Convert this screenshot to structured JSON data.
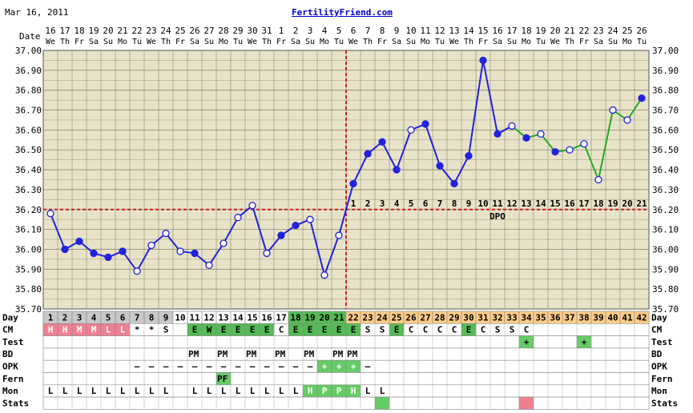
{
  "header": {
    "date": "Mar 16, 2011",
    "site": "FertilityFriend.com"
  },
  "colors": {
    "grid_bg": "#e8e3c8",
    "grid_line": "#8a8a70",
    "temp_line": "#2222dd",
    "post_line": "#22aa22",
    "cover_line": "#cc2222",
    "ovulation_line": "#cc2222",
    "cd_gray": "#c8c8c8",
    "cd_green": "#55bb55",
    "cd_orange": "#ffcc88",
    "fertile_pink": "#f08090",
    "green_box": "#66cc66"
  },
  "row_labels": {
    "date": "Date",
    "day": "Day",
    "cm": "CM",
    "test": "Test",
    "bd": "BD",
    "opk": "OPK",
    "fern": "Fern",
    "mon": "Mon",
    "stats": "Stats",
    "dpo": "DPO"
  },
  "chart_data": {
    "type": "line",
    "title": "",
    "xlabel": "Day",
    "ylabel": "",
    "ylim": [
      35.7,
      37.0
    ],
    "y_ticks": [
      "37.00",
      "36.90",
      "36.80",
      "36.70",
      "36.60",
      "36.50",
      "36.40",
      "36.30",
      "36.20",
      "36.10",
      "36.00",
      "35.90",
      "35.80",
      "35.70"
    ],
    "grid": true,
    "dates": [
      "16",
      "17",
      "18",
      "19",
      "20",
      "21",
      "22",
      "23",
      "24",
      "25",
      "26",
      "27",
      "28",
      "29",
      "30",
      "31",
      "1",
      "2",
      "3",
      "4",
      "5",
      "6",
      "7",
      "8",
      "9",
      "10",
      "11",
      "12",
      "13",
      "14",
      "15",
      "16",
      "17",
      "18",
      "19",
      "20",
      "21",
      "22",
      "23",
      "24",
      "25",
      "26"
    ],
    "weekdays": [
      "We",
      "Th",
      "Fr",
      "Sa",
      "Su",
      "Mo",
      "Tu",
      "We",
      "Th",
      "Fr",
      "Sa",
      "Su",
      "Mo",
      "Tu",
      "We",
      "Th",
      "Fr",
      "Sa",
      "Su",
      "Mo",
      "Tu",
      "We",
      "Th",
      "Fr",
      "Sa",
      "Su",
      "Mo",
      "Tu",
      "We",
      "Th",
      "Fr",
      "Sa",
      "Su",
      "Mo",
      "Tu",
      "We",
      "Th",
      "Fr",
      "Sa",
      "Su",
      "Mo",
      "Tu"
    ],
    "cycle_days": [
      1,
      2,
      3,
      4,
      5,
      6,
      7,
      8,
      9,
      10,
      11,
      12,
      13,
      14,
      15,
      16,
      17,
      18,
      19,
      20,
      21,
      22,
      23,
      24,
      25,
      26,
      27,
      28,
      29,
      30,
      31,
      32,
      33,
      34,
      35,
      36,
      37,
      38,
      39,
      40,
      41,
      42
    ],
    "temperatures": [
      36.18,
      36.0,
      36.04,
      35.98,
      35.96,
      35.99,
      35.89,
      36.02,
      36.08,
      35.99,
      35.98,
      35.92,
      36.03,
      36.16,
      36.22,
      35.98,
      36.07,
      36.12,
      36.15,
      35.87,
      36.07,
      36.33,
      36.48,
      36.54,
      36.4,
      36.6,
      36.63,
      36.42,
      36.33,
      36.47,
      36.95,
      36.58,
      36.62,
      36.56,
      36.58,
      36.49,
      36.5,
      36.53,
      36.35,
      36.7,
      36.65,
      36.76
    ],
    "open_points": [
      1,
      7,
      8,
      9,
      10,
      12,
      13,
      14,
      15,
      16,
      19,
      20,
      21,
      26,
      33,
      35,
      37,
      38,
      39,
      40,
      41
    ],
    "missing_days": [],
    "coverline": 36.2,
    "ovulation_day": 21,
    "dpo_labels": [
      "1",
      "2",
      "3",
      "4",
      "5",
      "6",
      "7",
      "8",
      "9",
      "10",
      "11",
      "12",
      "13",
      "14",
      "15",
      "16",
      "17",
      "18",
      "19",
      "20",
      "21"
    ],
    "cm": [
      "H",
      "H",
      "M",
      "M",
      "L",
      "L",
      "*",
      "*",
      "S",
      "",
      "E",
      "W",
      "E",
      "E",
      "E",
      "E",
      "C",
      "E",
      "E",
      "E",
      "E",
      "E",
      "S",
      "S",
      "E",
      "C",
      "C",
      "C",
      "C",
      "E",
      "C",
      "S",
      "S",
      "C",
      "",
      "",
      "",
      "",
      "",
      "",
      "",
      ""
    ],
    "test": [
      "",
      "",
      "",
      "",
      "",
      "",
      "",
      "",
      "",
      "",
      "",
      "",
      "",
      "",
      "",
      "",
      "",
      "",
      "",
      "",
      "",
      "",
      "",
      "",
      "",
      "",
      "",
      "",
      "",
      "",
      "",
      "",
      "",
      "+",
      "",
      "",
      "",
      "+",
      "",
      "",
      "",
      ""
    ],
    "bd": [
      "",
      "",
      "",
      "",
      "",
      "",
      "",
      "",
      "",
      "",
      "PM",
      "",
      "PM",
      "",
      "PM",
      "",
      "PM",
      "",
      "PM",
      "",
      "PM",
      "PM",
      "",
      "",
      "",
      "",
      "",
      "",
      "",
      "",
      "",
      "",
      "",
      "",
      "",
      "",
      "",
      "",
      "",
      "",
      "",
      ""
    ],
    "opk": [
      "",
      "",
      "",
      "",
      "",
      "",
      "–",
      "–",
      "–",
      "–",
      "–",
      "–",
      "–",
      "–",
      "–",
      "–",
      "–",
      "–",
      "–",
      "+",
      "+",
      "+",
      "–",
      "",
      "",
      "",
      "",
      "",
      "",
      "",
      "",
      "",
      "",
      "",
      "",
      "",
      "",
      "",
      "",
      "",
      "",
      ""
    ],
    "fern": [
      "",
      "",
      "",
      "",
      "",
      "",
      "",
      "",
      "",
      "",
      "",
      "",
      "PF",
      "",
      "",
      "",
      "",
      "",
      "",
      "",
      "",
      "",
      "",
      "",
      "",
      "",
      "",
      "",
      "",
      "",
      "",
      "",
      "",
      "",
      "",
      "",
      "",
      "",
      "",
      "",
      "",
      ""
    ],
    "mon": [
      "L",
      "L",
      "L",
      "L",
      "L",
      "L",
      "L",
      "L",
      "L",
      "",
      "L",
      "L",
      "L",
      "L",
      "L",
      "L",
      "L",
      "L",
      "H",
      "P",
      "P",
      "H",
      "L",
      "L",
      "",
      "",
      "",
      "",
      "",
      "",
      "",
      "",
      "",
      "",
      "",
      "",
      "",
      "",
      "",
      "",
      "",
      ""
    ],
    "stats": [
      "",
      "",
      "",
      "",
      "",
      "",
      "",
      "",
      "",
      "",
      "",
      "",
      "",
      "",
      "",
      "",
      "",
      "",
      "",
      "",
      "",
      "",
      "",
      "green",
      "",
      "",
      "",
      "",
      "",
      "",
      "",
      "",
      "",
      "pink",
      "",
      "",
      "",
      "",
      "",
      "",
      "",
      ""
    ]
  }
}
